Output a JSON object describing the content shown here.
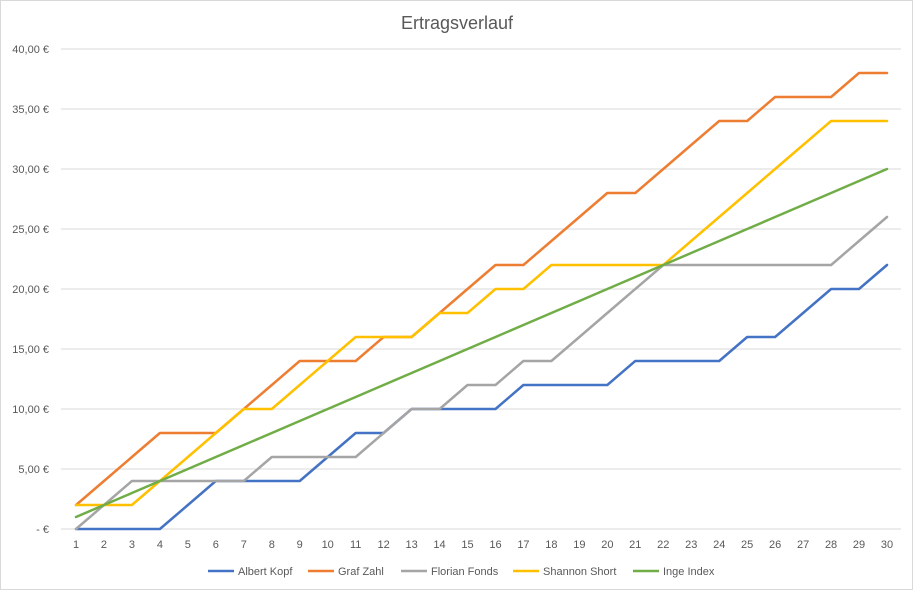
{
  "chart_data": {
    "type": "line",
    "title": "Ertragsverlauf",
    "xlabel": "",
    "ylabel": "",
    "x": [
      1,
      2,
      3,
      4,
      5,
      6,
      7,
      8,
      9,
      10,
      11,
      12,
      13,
      14,
      15,
      16,
      17,
      18,
      19,
      20,
      21,
      22,
      23,
      24,
      25,
      26,
      27,
      28,
      29,
      30
    ],
    "ylim": [
      0,
      40
    ],
    "yticks": [
      0,
      5,
      10,
      15,
      20,
      25,
      30,
      35,
      40
    ],
    "ytick_labels": [
      "-   €",
      "5,00 €",
      "10,00 €",
      "15,00 €",
      "20,00 €",
      "25,00 €",
      "30,00 €",
      "35,00 €",
      "40,00 €"
    ],
    "grid": "horizontal",
    "legend_position": "bottom",
    "series": [
      {
        "name": "Albert Kopf",
        "color": "#4472C4",
        "values": [
          0,
          0,
          0,
          0,
          2,
          4,
          4,
          4,
          4,
          6,
          8,
          8,
          10,
          10,
          10,
          10,
          12,
          12,
          12,
          12,
          14,
          14,
          14,
          14,
          16,
          16,
          18,
          20,
          20,
          22
        ]
      },
      {
        "name": "Graf Zahl",
        "color": "#ED7D31",
        "values": [
          2,
          4,
          6,
          8,
          8,
          8,
          10,
          12,
          14,
          14,
          14,
          16,
          16,
          18,
          20,
          22,
          22,
          24,
          26,
          28,
          28,
          30,
          32,
          34,
          34,
          36,
          36,
          36,
          38,
          38
        ]
      },
      {
        "name": "Florian Fonds",
        "color": "#A5A5A5",
        "values": [
          0,
          2,
          4,
          4,
          4,
          4,
          4,
          6,
          6,
          6,
          6,
          8,
          10,
          10,
          12,
          12,
          14,
          14,
          16,
          18,
          20,
          22,
          22,
          22,
          22,
          22,
          22,
          22,
          24,
          26
        ]
      },
      {
        "name": "Shannon Short",
        "color": "#FFC000",
        "values": [
          2,
          2,
          2,
          4,
          6,
          8,
          10,
          10,
          12,
          14,
          16,
          16,
          16,
          18,
          18,
          20,
          20,
          22,
          22,
          22,
          22,
          22,
          24,
          26,
          28,
          30,
          32,
          34,
          34,
          34
        ]
      },
      {
        "name": "Inge Index",
        "color": "#70AD47",
        "values": [
          1,
          2,
          3,
          4,
          5,
          6,
          7,
          8,
          9,
          10,
          11,
          12,
          13,
          14,
          15,
          16,
          17,
          18,
          19,
          20,
          21,
          22,
          23,
          24,
          25,
          26,
          27,
          28,
          29,
          30
        ]
      }
    ]
  }
}
